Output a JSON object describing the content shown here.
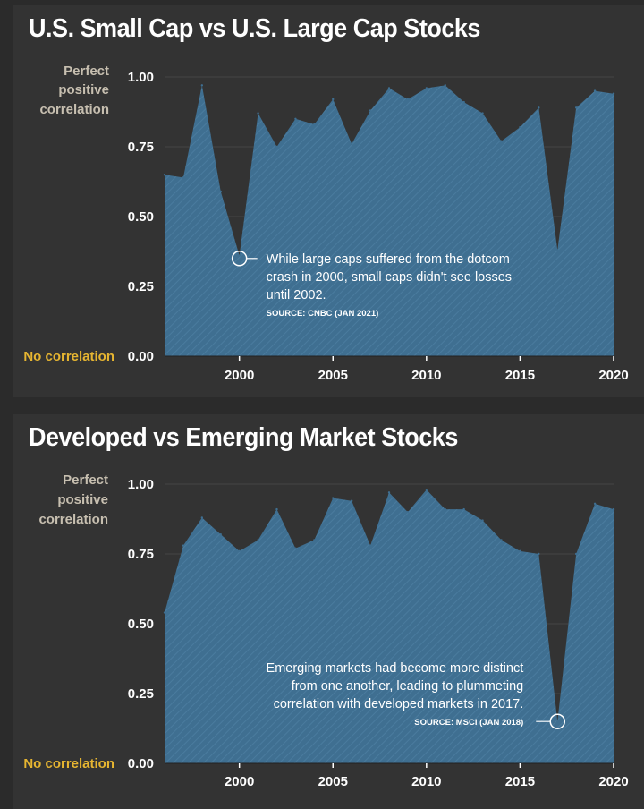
{
  "chart_data": [
    {
      "type": "area",
      "title": "U.S. Small Cap vs U.S. Large Cap Stocks",
      "ylabel_top": [
        "Perfect",
        "positive",
        "correlation"
      ],
      "ylabel_bottom": "No correlation",
      "ylim": [
        0,
        1
      ],
      "xlim": [
        1996,
        2020
      ],
      "x_ticks": [
        "2000",
        "2005",
        "2010",
        "2015",
        "2020"
      ],
      "y_ticks": [
        "1.00",
        "0.75",
        "0.50",
        "0.25",
        "0.00"
      ],
      "x": [
        1996,
        1997,
        1998,
        1999,
        2000,
        2001,
        2002,
        2003,
        2004,
        2005,
        2006,
        2007,
        2008,
        2009,
        2010,
        2011,
        2012,
        2013,
        2014,
        2015,
        2016,
        2017,
        2018,
        2019,
        2020
      ],
      "values": [
        0.65,
        0.64,
        0.97,
        0.59,
        0.36,
        0.87,
        0.75,
        0.85,
        0.83,
        0.92,
        0.76,
        0.88,
        0.96,
        0.92,
        0.96,
        0.97,
        0.91,
        0.87,
        0.77,
        0.82,
        0.89,
        0.38,
        0.89,
        0.95,
        0.94
      ],
      "fill_color": "#3f6f91",
      "annotation": {
        "x": 2000,
        "y": 0.35,
        "lines": [
          "While large caps suffered from the dotcom",
          "crash in 2000, small caps didn't see losses",
          "until 2002."
        ],
        "source": "SOURCE: CNBC (JAN 2021)"
      }
    },
    {
      "type": "area",
      "title": "Developed vs Emerging Market Stocks",
      "ylabel_top": [
        "Perfect",
        "positive",
        "correlation"
      ],
      "ylabel_bottom": "No correlation",
      "ylim": [
        0,
        1
      ],
      "xlim": [
        1996,
        2020
      ],
      "x_ticks": [
        "2000",
        "2005",
        "2010",
        "2015",
        "2020"
      ],
      "y_ticks": [
        "1.00",
        "0.75",
        "0.50",
        "0.25",
        "0.00"
      ],
      "x": [
        1996,
        1997,
        1998,
        1999,
        2000,
        2001,
        2002,
        2003,
        2004,
        2005,
        2006,
        2007,
        2008,
        2009,
        2010,
        2011,
        2012,
        2013,
        2014,
        2015,
        2016,
        2017,
        2018,
        2019,
        2020
      ],
      "values": [
        0.54,
        0.78,
        0.88,
        0.82,
        0.76,
        0.8,
        0.91,
        0.77,
        0.8,
        0.95,
        0.94,
        0.78,
        0.97,
        0.9,
        0.98,
        0.91,
        0.91,
        0.87,
        0.8,
        0.76,
        0.75,
        0.15,
        0.75,
        0.93,
        0.91
      ],
      "fill_color": "#3f6f91",
      "annotation": {
        "x": 2017,
        "y": 0.15,
        "lines": [
          "Emerging markets had become more distinct",
          "from one another, leading to plummeting",
          "correlation with developed markets in 2017."
        ],
        "source": "SOURCE: MSCI (JAN 2018)"
      }
    }
  ]
}
